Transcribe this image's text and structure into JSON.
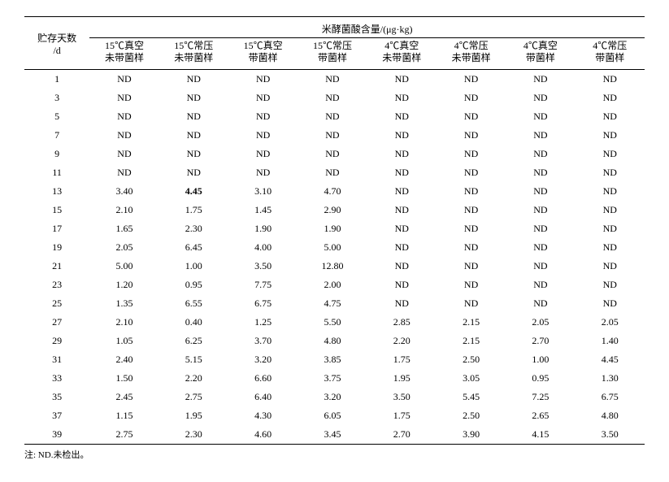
{
  "header": {
    "row_header_l1": "贮存天数",
    "row_header_l2": "/d",
    "group_header": "米酵菌酸含量/(μg·kg)",
    "cols": [
      {
        "l1": "15℃真空",
        "l2": "未带菌样"
      },
      {
        "l1": "15℃常压",
        "l2": "未带菌样"
      },
      {
        "l1": "15℃真空",
        "l2": "带菌样"
      },
      {
        "l1": "15℃常压",
        "l2": "带菌样"
      },
      {
        "l1": "4℃真空",
        "l2": "未带菌样"
      },
      {
        "l1": "4℃常压",
        "l2": "未带菌样"
      },
      {
        "l1": "4℃真空",
        "l2": "带菌样"
      },
      {
        "l1": "4℃常压",
        "l2": "带菌样"
      }
    ]
  },
  "rows": [
    {
      "day": "1",
      "v": [
        "ND",
        "ND",
        "ND",
        "ND",
        "ND",
        "ND",
        "ND",
        "ND"
      ]
    },
    {
      "day": "3",
      "v": [
        "ND",
        "ND",
        "ND",
        "ND",
        "ND",
        "ND",
        "ND",
        "ND"
      ]
    },
    {
      "day": "5",
      "v": [
        "ND",
        "ND",
        "ND",
        "ND",
        "ND",
        "ND",
        "ND",
        "ND"
      ]
    },
    {
      "day": "7",
      "v": [
        "ND",
        "ND",
        "ND",
        "ND",
        "ND",
        "ND",
        "ND",
        "ND"
      ]
    },
    {
      "day": "9",
      "v": [
        "ND",
        "ND",
        "ND",
        "ND",
        "ND",
        "ND",
        "ND",
        "ND"
      ]
    },
    {
      "day": "11",
      "v": [
        "ND",
        "ND",
        "ND",
        "ND",
        "ND",
        "ND",
        "ND",
        "ND"
      ]
    },
    {
      "day": "13",
      "v": [
        "3.40",
        "4.45",
        "3.10",
        "4.70",
        "ND",
        "ND",
        "ND",
        "ND"
      ],
      "bold_cols": [
        1
      ]
    },
    {
      "day": "15",
      "v": [
        "2.10",
        "1.75",
        "1.45",
        "2.90",
        "ND",
        "ND",
        "ND",
        "ND"
      ]
    },
    {
      "day": "17",
      "v": [
        "1.65",
        "2.30",
        "1.90",
        "1.90",
        "ND",
        "ND",
        "ND",
        "ND"
      ]
    },
    {
      "day": "19",
      "v": [
        "2.05",
        "6.45",
        "4.00",
        "5.00",
        "ND",
        "ND",
        "ND",
        "ND"
      ]
    },
    {
      "day": "21",
      "v": [
        "5.00",
        "1.00",
        "3.50",
        "12.80",
        "ND",
        "ND",
        "ND",
        "ND"
      ]
    },
    {
      "day": "23",
      "v": [
        "1.20",
        "0.95",
        "7.75",
        "2.00",
        "ND",
        "ND",
        "ND",
        "ND"
      ]
    },
    {
      "day": "25",
      "v": [
        "1.35",
        "6.55",
        "6.75",
        "4.75",
        "ND",
        "ND",
        "ND",
        "ND"
      ]
    },
    {
      "day": "27",
      "v": [
        "2.10",
        "0.40",
        "1.25",
        "5.50",
        "2.85",
        "2.15",
        "2.05",
        "2.05"
      ]
    },
    {
      "day": "29",
      "v": [
        "1.05",
        "6.25",
        "3.70",
        "4.80",
        "2.20",
        "2.15",
        "2.70",
        "1.40"
      ]
    },
    {
      "day": "31",
      "v": [
        "2.40",
        "5.15",
        "3.20",
        "3.85",
        "1.75",
        "2.50",
        "1.00",
        "4.45"
      ]
    },
    {
      "day": "33",
      "v": [
        "1.50",
        "2.20",
        "6.60",
        "3.75",
        "1.95",
        "3.05",
        "0.95",
        "1.30"
      ]
    },
    {
      "day": "35",
      "v": [
        "2.45",
        "2.75",
        "6.40",
        "3.20",
        "3.50",
        "5.45",
        "7.25",
        "6.75"
      ]
    },
    {
      "day": "37",
      "v": [
        "1.15",
        "1.95",
        "4.30",
        "6.05",
        "1.75",
        "2.50",
        "2.65",
        "4.80"
      ]
    },
    {
      "day": "39",
      "v": [
        "2.75",
        "2.30",
        "4.60",
        "3.45",
        "2.70",
        "3.90",
        "4.15",
        "3.50"
      ]
    }
  ],
  "footnote": "注: ND.未检出。"
}
